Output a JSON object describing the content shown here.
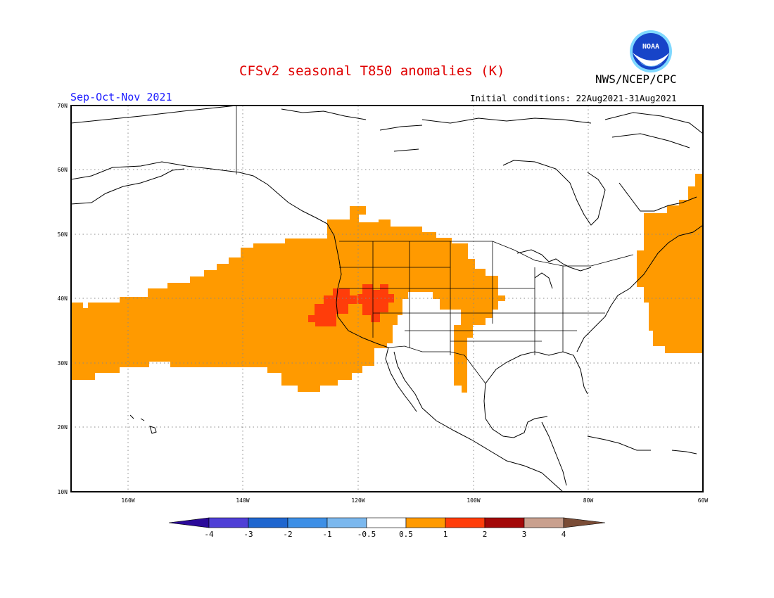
{
  "title": "CFSv2 seasonal T850 anomalies (K)",
  "season": "Sep-Oct-Nov 2021",
  "initial_conditions": "Initial conditions: 22Aug2021-31Aug2021",
  "agency": "NWS/NCEP/CPC",
  "logo_text": "NOAA",
  "title_color": "#e00000",
  "season_color": "#1a1aff",
  "lat_labels": [
    "70N",
    "60N",
    "50N",
    "40N",
    "30N",
    "20N",
    "10N"
  ],
  "lon_labels": [
    "160W",
    "140W",
    "120W",
    "100W",
    "80W",
    "60W"
  ],
  "colorbar": {
    "tick_labels": [
      "-4",
      "-3",
      "-2",
      "-1",
      "-0.5",
      "0.5",
      "1",
      "2",
      "3",
      "4"
    ],
    "colors": [
      "#2b0a9a",
      "#4f3fd6",
      "#1f66cf",
      "#3d8fe6",
      "#7bb8ee",
      "#ffffff",
      "#ff9a00",
      "#ff3d0a",
      "#a30808",
      "#c9a08e",
      "#7a4c36"
    ]
  },
  "anomaly_legend": {
    "positive_1": "#ff9a00",
    "positive_2": "#ff3d0a"
  }
}
